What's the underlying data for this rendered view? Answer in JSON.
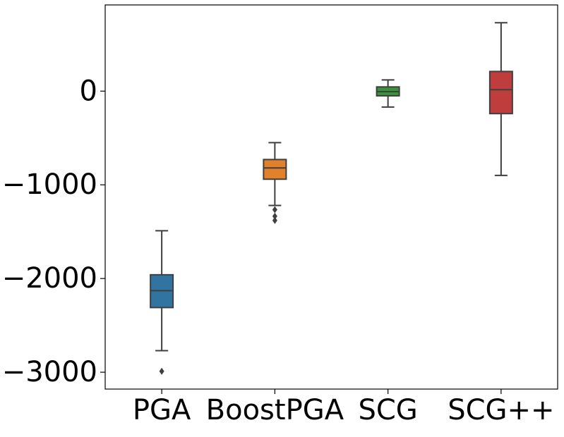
{
  "chart_data": {
    "type": "boxplot",
    "title": "",
    "xlabel": "",
    "ylabel": "",
    "ylim": [
      -3180,
      920
    ],
    "yticks": [
      0,
      -1000,
      -2000,
      -3000
    ],
    "ytick_labels": [
      "0",
      "−1000",
      "−2000",
      "−3000"
    ],
    "categories": [
      "PGA",
      "BoostPGA",
      "SCG",
      "SCG++"
    ],
    "series": [
      {
        "name": "PGA",
        "color": "#3274a1",
        "whisker_low": -2770,
        "q1": -2310,
        "median": -2130,
        "q3": -1960,
        "whisker_high": -1490,
        "fliers": [
          -2990
        ]
      },
      {
        "name": "BoostPGA",
        "color": "#e1812c",
        "whisker_low": -1220,
        "q1": -940,
        "median": -820,
        "q3": -730,
        "whisker_high": -550,
        "fliers": [
          -1265,
          -1335,
          -1380
        ]
      },
      {
        "name": "SCG",
        "color": "#3a923a",
        "whisker_low": -170,
        "q1": -50,
        "median": -5,
        "q3": 45,
        "whisker_high": 120,
        "fliers": []
      },
      {
        "name": "SCG++",
        "color": "#c03d3e",
        "whisker_low": -900,
        "q1": -240,
        "median": 15,
        "q3": 210,
        "whisker_high": 730,
        "fliers": []
      }
    ]
  }
}
